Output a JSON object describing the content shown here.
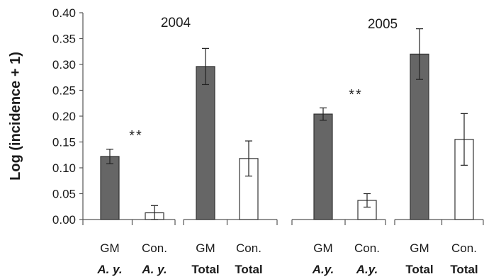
{
  "chart_data": {
    "type": "bar",
    "ylabel": "Log (incidence + 1)",
    "ylim": [
      0,
      0.4
    ],
    "y_ticks": [
      "0.00",
      "0.05",
      "0.10",
      "0.15",
      "0.20",
      "0.25",
      "0.30",
      "0.35",
      "0.40"
    ],
    "grid": false,
    "colors": {
      "GM": "#666666",
      "Con": "#ffffff"
    },
    "panels": [
      {
        "title": "2004",
        "categories": [
          {
            "line1": "GM",
            "line2": "A. y.",
            "italic": true
          },
          {
            "line1": "Con.",
            "line2": "A. y.",
            "italic": true
          },
          {
            "line1": "GM",
            "line2": "Total",
            "italic": false
          },
          {
            "line1": "Con.",
            "line2": "Total",
            "italic": false
          }
        ],
        "values": [
          0.122,
          0.013,
          0.296,
          0.118
        ],
        "errors": [
          0.014,
          0.014,
          0.035,
          0.034
        ],
        "fill": [
          "GM",
          "Con",
          "GM",
          "Con"
        ],
        "significance": "**"
      },
      {
        "title": "2005",
        "categories": [
          {
            "line1": "GM",
            "line2": "A.y.",
            "italic": true
          },
          {
            "line1": "Con.",
            "line2": "A.y.",
            "italic": true
          },
          {
            "line1": "GM",
            "line2": "Total",
            "italic": false
          },
          {
            "line1": "Con.",
            "line2": "Total",
            "italic": false
          }
        ],
        "values": [
          0.204,
          0.037,
          0.32,
          0.155
        ],
        "errors": [
          0.012,
          0.013,
          0.049,
          0.05
        ],
        "fill": [
          "GM",
          "Con",
          "GM",
          "Con"
        ],
        "significance": "**"
      }
    ]
  }
}
